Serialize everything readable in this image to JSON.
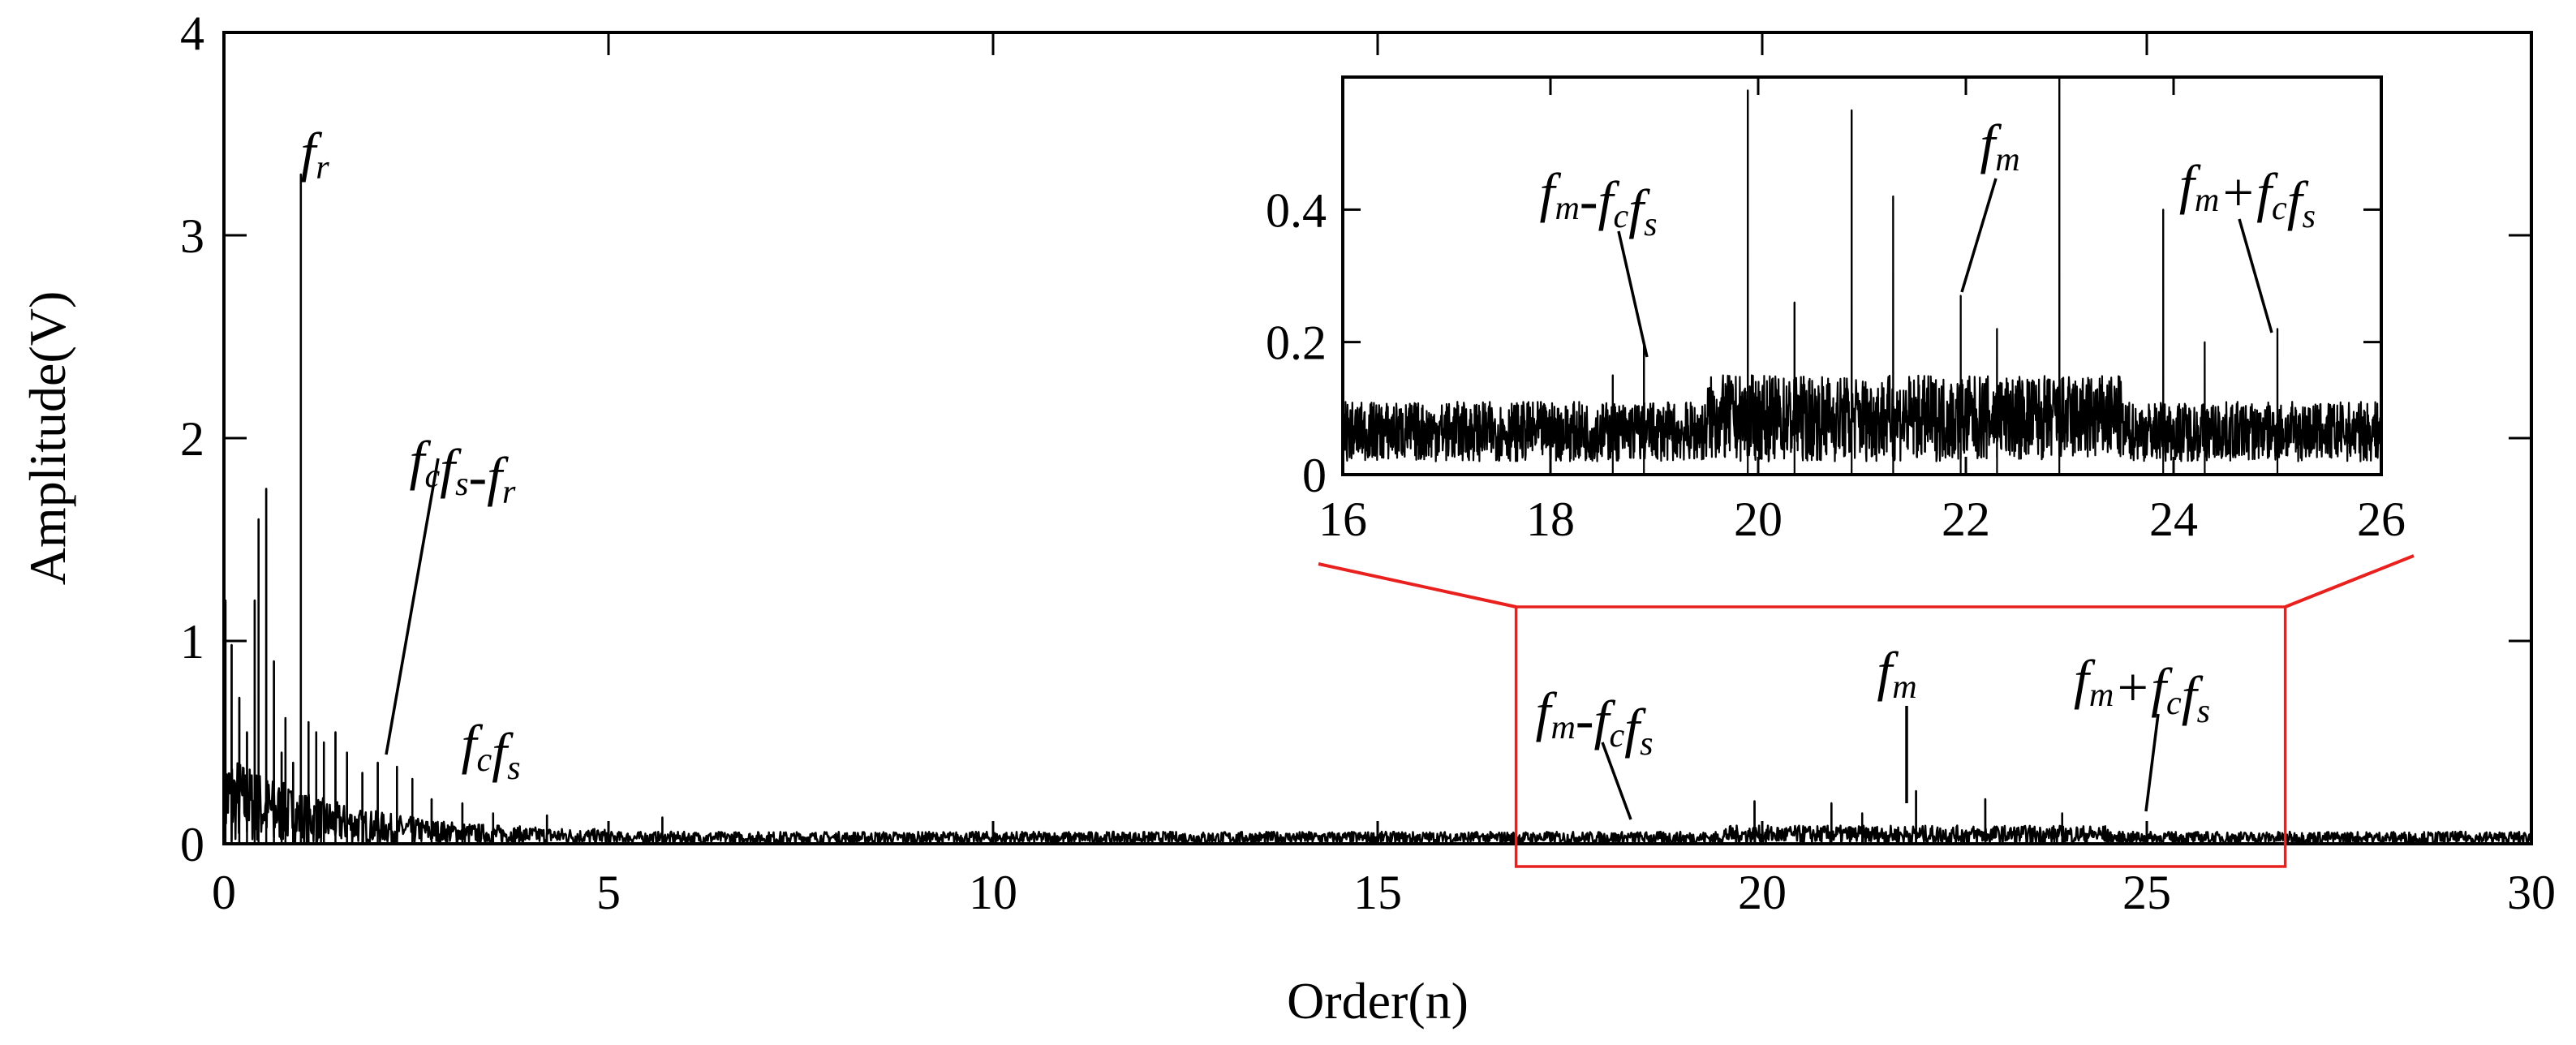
{
  "chart_data": [
    {
      "type": "line",
      "title": "",
      "xlabel": "Order(n)",
      "ylabel": "Amplitude(V)",
      "xlim": [
        0,
        30
      ],
      "ylim": [
        0,
        4
      ],
      "x_ticks": [
        0,
        5,
        10,
        15,
        20,
        25,
        30
      ],
      "x_tick_labels": [
        "0",
        "5",
        "10",
        "15",
        "20",
        "25",
        "30"
      ],
      "y_ticks": [
        0,
        1,
        2,
        3,
        4
      ],
      "y_tick_labels": [
        "0",
        "1",
        "2",
        "3",
        "4"
      ],
      "grid": false,
      "line_color": "#000000",
      "zoom_box": {
        "x": [
          16.8,
          26.8
        ],
        "y": [
          0,
          1.2
        ],
        "color": "#e8201e"
      },
      "noise_floor": {
        "x": [
          5,
          30
        ],
        "amplitude_range": [
          0.0,
          0.06
        ]
      },
      "peaks": [
        {
          "x": 0.02,
          "y": 1.2
        },
        {
          "x": 0.1,
          "y": 0.98
        },
        {
          "x": 0.2,
          "y": 0.72
        },
        {
          "x": 0.3,
          "y": 0.55
        },
        {
          "x": 0.4,
          "y": 1.2
        },
        {
          "x": 0.45,
          "y": 1.6
        },
        {
          "x": 0.55,
          "y": 1.75
        },
        {
          "x": 0.65,
          "y": 0.9
        },
        {
          "x": 0.75,
          "y": 0.45
        },
        {
          "x": 0.8,
          "y": 0.62
        },
        {
          "x": 0.9,
          "y": 0.4
        },
        {
          "x": 1.0,
          "y": 3.3
        },
        {
          "x": 1.1,
          "y": 0.6
        },
        {
          "x": 1.2,
          "y": 0.55
        },
        {
          "x": 1.3,
          "y": 0.5
        },
        {
          "x": 1.45,
          "y": 0.55
        },
        {
          "x": 1.6,
          "y": 0.45
        },
        {
          "x": 1.8,
          "y": 0.35
        },
        {
          "x": 2.0,
          "y": 0.4
        },
        {
          "x": 2.25,
          "y": 0.38
        },
        {
          "x": 2.45,
          "y": 0.32
        },
        {
          "x": 2.7,
          "y": 0.22
        },
        {
          "x": 3.1,
          "y": 0.2
        },
        {
          "x": 3.5,
          "y": 0.15
        },
        {
          "x": 4.2,
          "y": 0.14
        },
        {
          "x": 5.7,
          "y": 0.13
        },
        {
          "x": 19.9,
          "y": 0.21
        },
        {
          "x": 20.9,
          "y": 0.2
        },
        {
          "x": 21.3,
          "y": 0.15
        },
        {
          "x": 22.0,
          "y": 0.26
        },
        {
          "x": 22.9,
          "y": 0.22
        },
        {
          "x": 23.9,
          "y": 0.15
        },
        {
          "x": 25.0,
          "y": 0.09
        }
      ],
      "annotations": [
        {
          "base": "f",
          "sub": "r",
          "tail": "",
          "x": 1.0,
          "y": 3.3
        },
        {
          "base": "f",
          "sub": "c",
          "tail": "f",
          "sub2": "s",
          "tail2": "-f",
          "sub3": "r",
          "x": 2.1,
          "y": 0.35
        },
        {
          "base": "f",
          "sub": "c",
          "tail": "f",
          "sub2": "s",
          "x": 3.1,
          "y": 0.2
        },
        {
          "base": "f",
          "sub": "m",
          "tail": "-f",
          "sub2": "c",
          "tail2": "f",
          "sub3": "s",
          "x": 18.5,
          "y": 0.08
        },
        {
          "base": "f",
          "sub": "m",
          "x": 22.0,
          "y": 0.15
        },
        {
          "base": "f",
          "sub": "m",
          "tail": "+f",
          "sub2": "c",
          "tail2": "f",
          "sub3": "s",
          "x": 25.0,
          "y": 0.09
        }
      ]
    },
    {
      "type": "line",
      "title": "",
      "xlabel": "",
      "ylabel": "",
      "inset_of": 0,
      "xlim": [
        16,
        26
      ],
      "ylim": [
        0,
        0.6
      ],
      "x_ticks": [
        16,
        18,
        20,
        22,
        24,
        26
      ],
      "x_tick_labels": [
        "16",
        "18",
        "20",
        "22",
        "24",
        "26"
      ],
      "y_ticks": [
        0,
        0.2,
        0.4
      ],
      "y_tick_labels": [
        "0",
        "0.2",
        "0.4"
      ],
      "grid": false,
      "line_color": "#000000",
      "noise_floor": {
        "x": [
          16,
          26
        ],
        "amplitude_range": [
          0.0,
          0.15
        ]
      },
      "peaks": [
        {
          "x": 18.6,
          "y": 0.15
        },
        {
          "x": 18.9,
          "y": 0.2
        },
        {
          "x": 19.9,
          "y": 0.58
        },
        {
          "x": 20.35,
          "y": 0.26
        },
        {
          "x": 20.9,
          "y": 0.55
        },
        {
          "x": 21.3,
          "y": 0.42
        },
        {
          "x": 21.95,
          "y": 0.27
        },
        {
          "x": 22.3,
          "y": 0.22
        },
        {
          "x": 22.9,
          "y": 0.6
        },
        {
          "x": 23.9,
          "y": 0.4
        },
        {
          "x": 24.3,
          "y": 0.2
        },
        {
          "x": 25.0,
          "y": 0.22
        }
      ],
      "annotations": [
        {
          "base": "f",
          "sub": "m",
          "tail": "-f",
          "sub2": "c",
          "tail2": "f",
          "sub3": "s",
          "x": 18.9,
          "y": 0.2
        },
        {
          "base": "f",
          "sub": "m",
          "x": 21.95,
          "y": 0.26
        },
        {
          "base": "f",
          "sub": "m",
          "tail": "+f",
          "sub2": "c",
          "tail2": "f",
          "sub3": "s",
          "x": 25.0,
          "y": 0.22
        }
      ]
    }
  ]
}
